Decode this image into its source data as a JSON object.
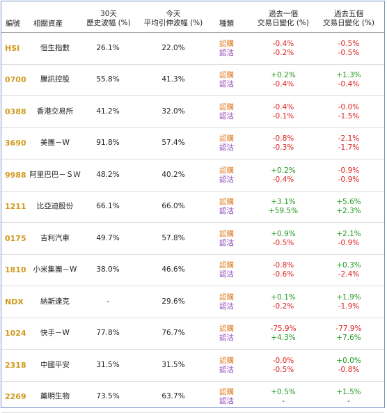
{
  "headers": {
    "code": "編號",
    "asset": "相關資產",
    "hv_line1": "30天",
    "hv_line2": "歷史波幅 (%)",
    "iv_line1": "今天",
    "iv_line2": "平均引伸波幅 (%)",
    "type": "種類",
    "chg1_line1": "過去一個",
    "chg1_line2": "交易日變化 (%)",
    "chg5_line1": "過去五個",
    "chg5_line2": "交易日變化 (%)"
  },
  "type_labels": {
    "call": "認購",
    "put": "認沽"
  },
  "colors": {
    "code": "#d29a1f",
    "call": "#e07a1f",
    "put": "#8a3fb8",
    "up": "#1f9a1f",
    "down": "#e02020",
    "border": "#6f90c8"
  },
  "rows": [
    {
      "code": "HSI",
      "name": "恒生指數",
      "hv": "26.1%",
      "iv": "22.0%",
      "call1": "-0.4%",
      "put1": "-0.2%",
      "call5": "-0.5%",
      "put5": "-0.5%"
    },
    {
      "code": "0700",
      "name": "騰訊控股",
      "hv": "55.8%",
      "iv": "41.3%",
      "call1": "+0.2%",
      "put1": "-0.4%",
      "call5": "+1.3%",
      "put5": "-0.4%"
    },
    {
      "code": "0388",
      "name": "香港交易所",
      "hv": "41.2%",
      "iv": "32.0%",
      "call1": "-0.4%",
      "put1": "-0.1%",
      "call5": "-0.0%",
      "put5": "-1.5%"
    },
    {
      "code": "3690",
      "name": "美團－W",
      "hv": "91.8%",
      "iv": "57.4%",
      "call1": "-0.8%",
      "put1": "-0.3%",
      "call5": "-2.1%",
      "put5": "-1.7%"
    },
    {
      "code": "9988",
      "name": "阿里巴巴－ＳＷ",
      "hv": "48.2%",
      "iv": "40.2%",
      "call1": "+0.2%",
      "put1": "-0.4%",
      "call5": "-0.9%",
      "put5": "-0.9%"
    },
    {
      "code": "1211",
      "name": "比亞迪股份",
      "hv": "66.1%",
      "iv": "66.0%",
      "call1": "+3.1%",
      "put1": "+59.5%",
      "call5": "+5.6%",
      "put5": "+2.3%"
    },
    {
      "code": "0175",
      "name": "吉利汽車",
      "hv": "49.7%",
      "iv": "57.8%",
      "call1": "+0.9%",
      "put1": "-0.5%",
      "call5": "+2.1%",
      "put5": "-0.9%"
    },
    {
      "code": "1810",
      "name": "小米集團－W",
      "hv": "38.0%",
      "iv": "46.6%",
      "call1": "-0.8%",
      "put1": "-0.6%",
      "call5": "+0.3%",
      "put5": "-2.4%"
    },
    {
      "code": "NDX",
      "name": "納斯達克",
      "hv": "-",
      "iv": "29.6%",
      "call1": "+0.1%",
      "put1": "-0.2%",
      "call5": "+1.9%",
      "put5": "-1.9%"
    },
    {
      "code": "1024",
      "name": "快手－W",
      "hv": "77.8%",
      "iv": "76.7%",
      "call1": "-75.9%",
      "put1": "+4.3%",
      "call5": "-77.9%",
      "put5": "+7.6%"
    },
    {
      "code": "2318",
      "name": "中國平安",
      "hv": "31.5%",
      "iv": "31.5%",
      "call1": "-0.0%",
      "put1": "-0.5%",
      "call5": "+0.0%",
      "put5": "-0.8%"
    },
    {
      "code": "2269",
      "name": "藥明生物",
      "hv": "73.5%",
      "iv": "63.7%",
      "call1": "+0.5%",
      "put1": "-",
      "call5": "+1.5%",
      "put5": "-"
    }
  ]
}
